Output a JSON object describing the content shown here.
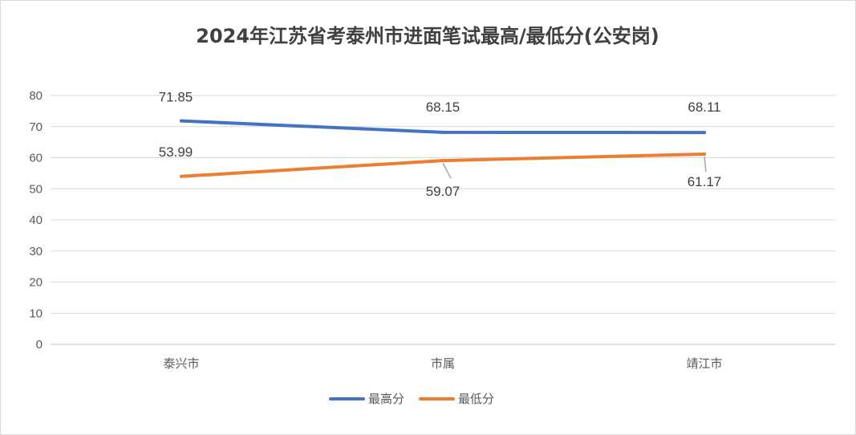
{
  "chart_data": {
    "type": "line",
    "title": "2024年江苏省考泰州市进面笔试最高/最低分(公安岗)",
    "categories": [
      "泰兴市",
      "市属",
      "靖江市"
    ],
    "series": [
      {
        "name": "最高分",
        "values": [
          71.85,
          68.15,
          68.11
        ],
        "color": "#4472c4"
      },
      {
        "name": "最低分",
        "values": [
          53.99,
          59.07,
          61.17
        ],
        "color": "#ed7d31"
      }
    ],
    "ylim": [
      0,
      80
    ],
    "yticks": [
      "0",
      "10",
      "20",
      "30",
      "40",
      "50",
      "60",
      "70",
      "80"
    ],
    "xlabel": "",
    "ylabel": "",
    "grid": true,
    "legend": "bottom",
    "data_labels": {
      "series_0": [
        "71.85",
        "68.15",
        "68.11"
      ],
      "series_1": [
        "53.99",
        "59.07",
        "61.17"
      ]
    }
  }
}
